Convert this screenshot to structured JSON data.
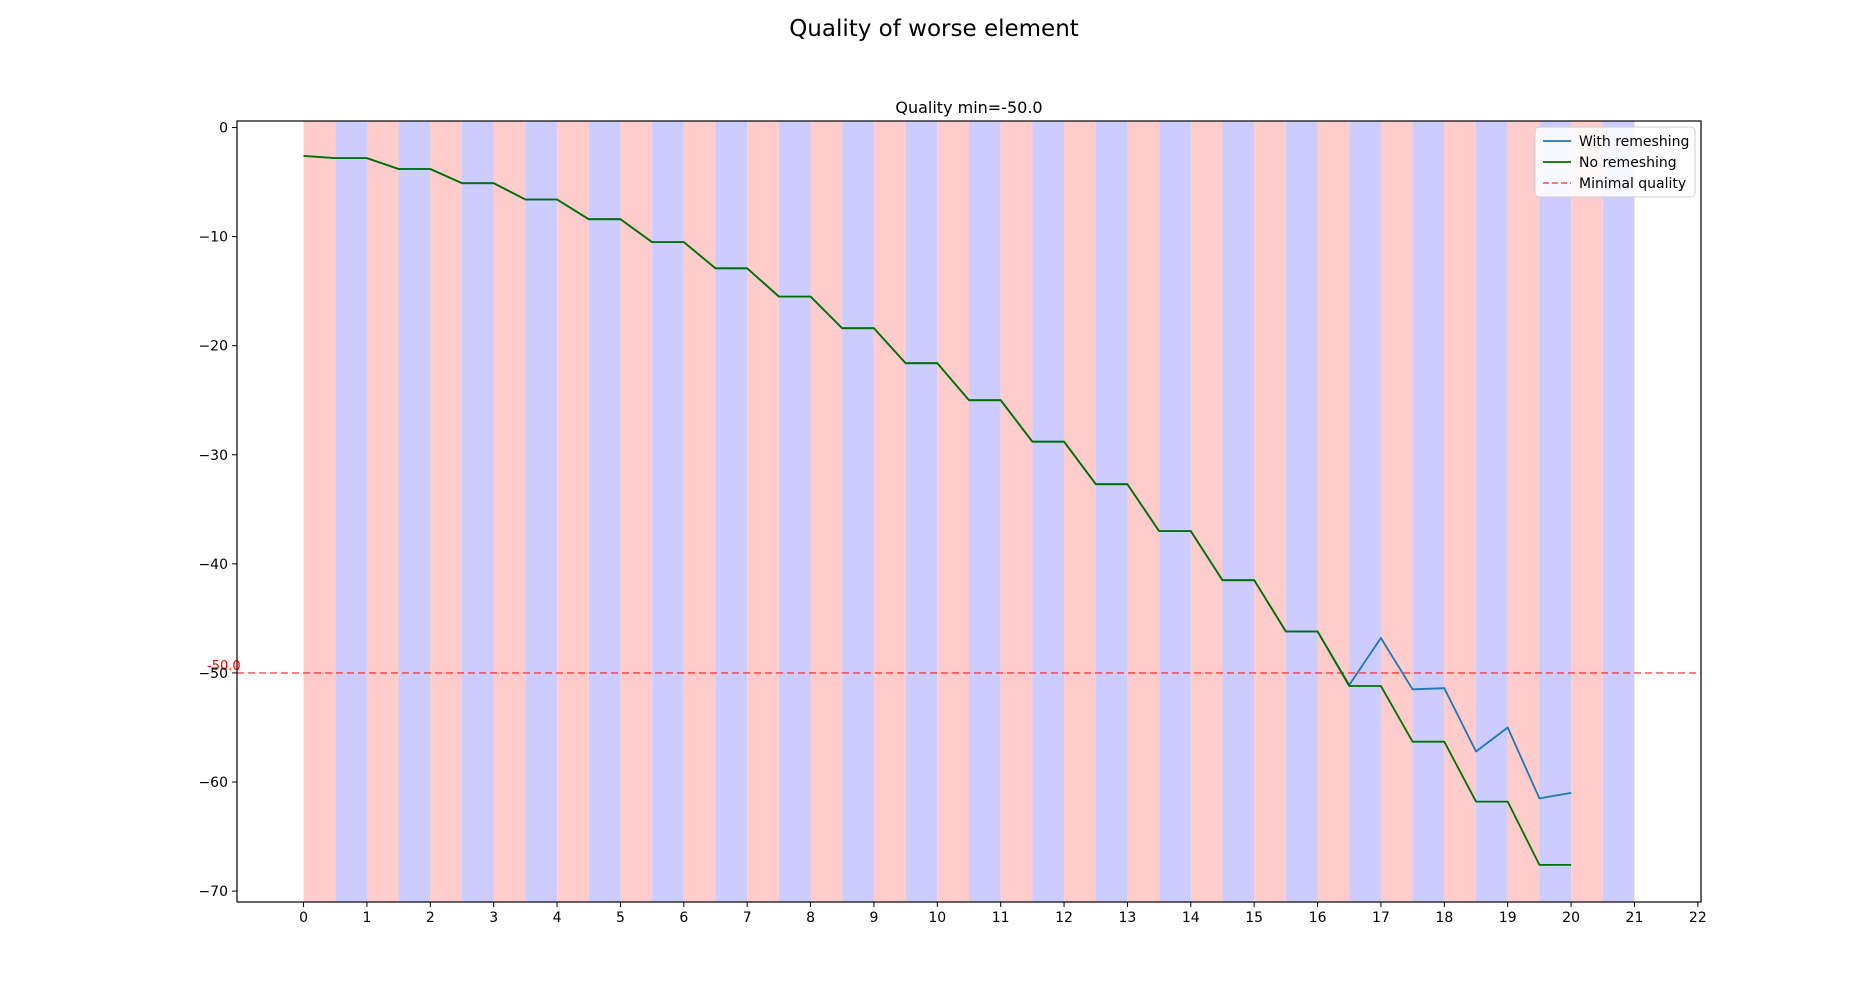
{
  "figure": {
    "suptitle": "Quality of worse element"
  },
  "chart_data": {
    "type": "line",
    "title": "Quality min=-50.0",
    "xlabel": "",
    "ylabel": "",
    "xlim": [
      -1.05,
      22.05
    ],
    "ylim": [
      -71.0,
      0.6
    ],
    "x_ticks": [
      "0",
      "1",
      "2",
      "3",
      "4",
      "5",
      "6",
      "7",
      "8",
      "9",
      "10",
      "11",
      "12",
      "13",
      "14",
      "15",
      "16",
      "17",
      "18",
      "19",
      "20",
      "21",
      "22"
    ],
    "y_ticks": [
      "0",
      "−10",
      "−20",
      "−30",
      "−40",
      "−50",
      "−60",
      "−70"
    ],
    "y_tick_values": [
      0,
      -10,
      -20,
      -30,
      -40,
      -50,
      -60,
      -70
    ],
    "grid": false,
    "legend_position": "upper right",
    "background_bands": {
      "colors": {
        "red": "#ffcccc",
        "blue": "#ccccff"
      },
      "pattern": "alternating half-unit bands starting at x=0, red first",
      "x_start": 0,
      "x_end": 21,
      "width": 0.5
    },
    "series": [
      {
        "name": "With remeshing",
        "color": "#1f77b4",
        "x": [
          0,
          0.5,
          1,
          1.5,
          2,
          2.5,
          3,
          3.5,
          4,
          4.5,
          5,
          5.5,
          6,
          6.5,
          7,
          7.5,
          8,
          8.5,
          9,
          9.5,
          10,
          10.5,
          11,
          11.5,
          12,
          12.5,
          13,
          13.5,
          14,
          14.5,
          15,
          15.5,
          16,
          16.5,
          17,
          17.5,
          18,
          18.5,
          19,
          19.5,
          20
        ],
        "values": [
          -2.6,
          -2.8,
          -2.8,
          -3.8,
          -3.8,
          -5.1,
          -5.1,
          -6.6,
          -6.6,
          -8.4,
          -8.4,
          -10.5,
          -10.5,
          -12.9,
          -12.9,
          -15.5,
          -15.5,
          -18.4,
          -18.4,
          -21.6,
          -21.6,
          -25.0,
          -25.0,
          -28.8,
          -28.8,
          -32.7,
          -32.7,
          -37.0,
          -37.0,
          -41.5,
          -41.5,
          -46.2,
          -46.2,
          -51.1,
          -46.8,
          -51.5,
          -51.4,
          -57.2,
          -55.0,
          -61.5,
          -61.0
        ]
      },
      {
        "name": "No remeshing",
        "color": "#007000",
        "x": [
          0,
          0.5,
          1,
          1.5,
          2,
          2.5,
          3,
          3.5,
          4,
          4.5,
          5,
          5.5,
          6,
          6.5,
          7,
          7.5,
          8,
          8.5,
          9,
          9.5,
          10,
          10.5,
          11,
          11.5,
          12,
          12.5,
          13,
          13.5,
          14,
          14.5,
          15,
          15.5,
          16,
          16.5,
          17,
          17.5,
          18,
          18.5,
          19,
          19.5,
          20
        ],
        "values": [
          -2.6,
          -2.8,
          -2.8,
          -3.8,
          -3.8,
          -5.1,
          -5.1,
          -6.6,
          -6.6,
          -8.4,
          -8.4,
          -10.5,
          -10.5,
          -12.9,
          -12.9,
          -15.5,
          -15.5,
          -18.4,
          -18.4,
          -21.6,
          -21.6,
          -25.0,
          -25.0,
          -28.8,
          -28.8,
          -32.7,
          -32.7,
          -37.0,
          -37.0,
          -41.5,
          -41.5,
          -46.2,
          -46.2,
          -51.2,
          -51.2,
          -56.3,
          -56.3,
          -61.8,
          -61.8,
          -67.6,
          -67.6
        ]
      }
    ],
    "reference_line": {
      "name": "Minimal quality",
      "y": -50.0,
      "label": "-50.0",
      "color": "#ff0000",
      "style": "dashed"
    }
  }
}
